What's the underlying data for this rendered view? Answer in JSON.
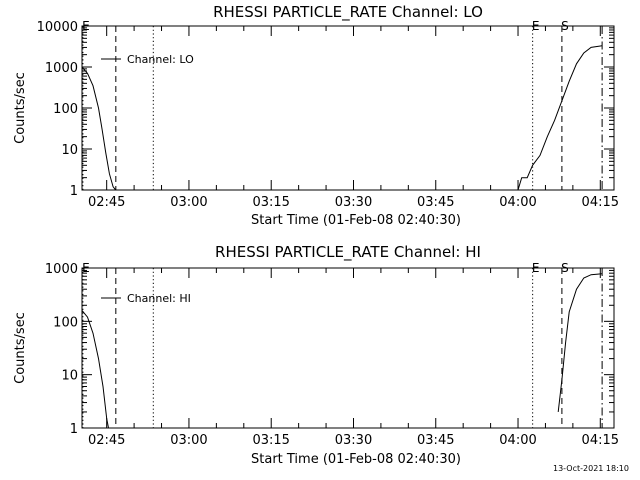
{
  "chart_data": [
    {
      "type": "line",
      "title": "RHESSI PARTICLE_RATE Channel: LO",
      "xlabel": "Start Time (01-Feb-08 02:40:30)",
      "ylabel": "Counts/sec",
      "y_scale": "log",
      "ylim": [
        1,
        10000
      ],
      "y_ticks": [
        "1",
        "10",
        "100",
        "1000",
        "10000"
      ],
      "x_ticks": [
        "02:45",
        "03:00",
        "03:15",
        "03:30",
        "03:45",
        "04:00",
        "04:15"
      ],
      "legend": {
        "entry": "Channel: LO",
        "position": "top-left"
      },
      "markers": [
        {
          "label": "E",
          "time": "02:40:40",
          "style": "dotted"
        },
        {
          "label": "",
          "time": "02:46:40",
          "style": "dashed"
        },
        {
          "label": "",
          "time": "02:53:30",
          "style": "dotted"
        },
        {
          "label": "E",
          "time": "04:02:40",
          "style": "dotted"
        },
        {
          "label": "S",
          "time": "04:08:00",
          "style": "dashed"
        },
        {
          "label": "",
          "time": "04:15:20",
          "style": "dashdot"
        }
      ],
      "series": [
        {
          "segments": [
            [
              [
                "02:40:30",
                1000
              ],
              [
                "02:41:30",
                700
              ],
              [
                "02:42:30",
                350
              ],
              [
                "02:43:30",
                100
              ],
              [
                "02:44:10",
                30
              ],
              [
                "02:44:50",
                8
              ],
              [
                "02:45:30",
                2.5
              ],
              [
                "02:46:10",
                1.2
              ],
              [
                "02:46:40",
                1
              ]
            ],
            [
              [
                "04:00:00",
                1
              ],
              [
                "04:00:40",
                2
              ],
              [
                "04:01:40",
                2
              ],
              [
                "04:02:40",
                4
              ],
              [
                "04:04:00",
                7
              ],
              [
                "04:05:20",
                20
              ],
              [
                "04:06:40",
                50
              ],
              [
                "04:08:00",
                150
              ],
              [
                "04:09:20",
                450
              ],
              [
                "04:10:40",
                1200
              ],
              [
                "04:12:00",
                2200
              ],
              [
                "04:13:20",
                3000
              ],
              [
                "04:15:20",
                3300
              ]
            ]
          ]
        }
      ]
    },
    {
      "type": "line",
      "title": "RHESSI PARTICLE_RATE Channel: HI",
      "xlabel": "Start Time (01-Feb-08 02:40:30)",
      "ylabel": "Counts/sec",
      "y_scale": "log",
      "ylim": [
        1,
        1000
      ],
      "y_ticks": [
        "1",
        "10",
        "100",
        "1000"
      ],
      "x_ticks": [
        "02:45",
        "03:00",
        "03:15",
        "03:30",
        "03:45",
        "04:00",
        "04:15"
      ],
      "legend": {
        "entry": "Channel: HI",
        "position": "top-left"
      },
      "markers": [
        {
          "label": "E",
          "time": "02:40:40",
          "style": "dotted"
        },
        {
          "label": "",
          "time": "02:46:40",
          "style": "dashed"
        },
        {
          "label": "",
          "time": "02:53:30",
          "style": "dotted"
        },
        {
          "label": "E",
          "time": "04:02:40",
          "style": "dotted"
        },
        {
          "label": "S",
          "time": "04:08:00",
          "style": "dashed"
        },
        {
          "label": "",
          "time": "04:15:20",
          "style": "dashdot"
        }
      ],
      "series": [
        {
          "segments": [
            [
              [
                "02:40:30",
                160
              ],
              [
                "02:41:30",
                120
              ],
              [
                "02:42:30",
                60
              ],
              [
                "02:43:30",
                20
              ],
              [
                "02:44:20",
                6
              ],
              [
                "02:45:00",
                1.5
              ],
              [
                "02:45:20",
                1
              ]
            ],
            [
              [
                "04:07:20",
                2
              ],
              [
                "04:08:00",
                8
              ],
              [
                "04:08:40",
                40
              ],
              [
                "04:09:20",
                150
              ],
              [
                "04:10:40",
                400
              ],
              [
                "04:12:00",
                650
              ],
              [
                "04:13:20",
                750
              ],
              [
                "04:15:20",
                780
              ]
            ]
          ]
        }
      ]
    }
  ],
  "footer": {
    "timestamp": "13-Oct-2021 18:10"
  }
}
